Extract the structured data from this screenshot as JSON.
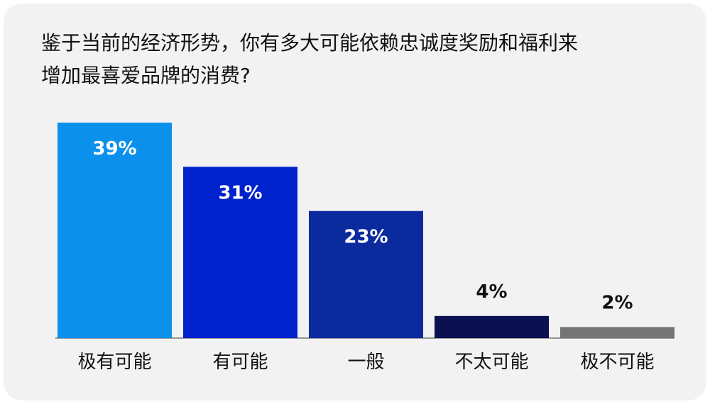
{
  "chart_data": {
    "type": "bar",
    "title_lines": [
      "鉴于当前的经济形势，你有多大可能依赖忠诚度奖励和福利来",
      "增加最喜爱品牌的消费?"
    ],
    "categories": [
      "极有可能",
      "有可能",
      "一般",
      "不太可能",
      "极不可能"
    ],
    "values": [
      39,
      31,
      23,
      4,
      2
    ],
    "value_labels": [
      "39%",
      "31%",
      "23%",
      "4%",
      "2%"
    ],
    "colors": [
      "#0b91ec",
      "#0022cc",
      "#0b2a9e",
      "#0a1050",
      "#757575"
    ],
    "label_colors": [
      "#ffffff",
      "#ffffff",
      "#ffffff",
      "#111111",
      "#111111"
    ],
    "label_inside": [
      true,
      true,
      true,
      false,
      false
    ],
    "ylim": [
      0,
      39
    ],
    "xlabel": "",
    "ylabel": "",
    "grid": false,
    "legend": "none"
  }
}
